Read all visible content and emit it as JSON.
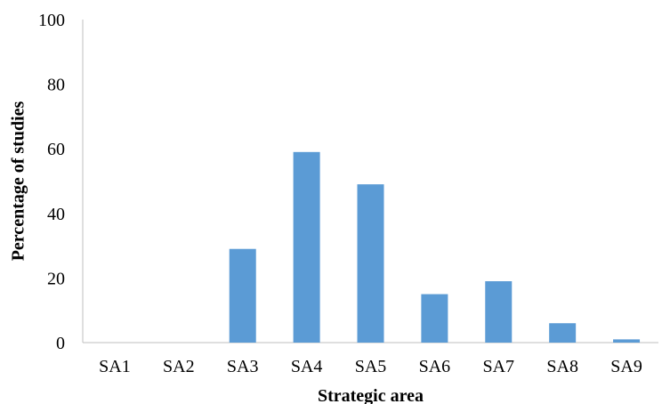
{
  "chart_data": {
    "type": "bar",
    "title": "",
    "xlabel": "Strategic area",
    "ylabel": "Percentage of studies",
    "categories": [
      "SA1",
      "SA2",
      "SA3",
      "SA4",
      "SA5",
      "SA6",
      "SA7",
      "SA8",
      "SA9"
    ],
    "values": [
      0,
      0,
      29,
      59,
      49,
      15,
      19,
      6,
      1
    ],
    "ylim": [
      0,
      100
    ],
    "yticks": [
      "0",
      "20",
      "40",
      "60",
      "80",
      "100"
    ],
    "bar_color": "#5b9bd5",
    "grid": false,
    "legend": "none"
  }
}
